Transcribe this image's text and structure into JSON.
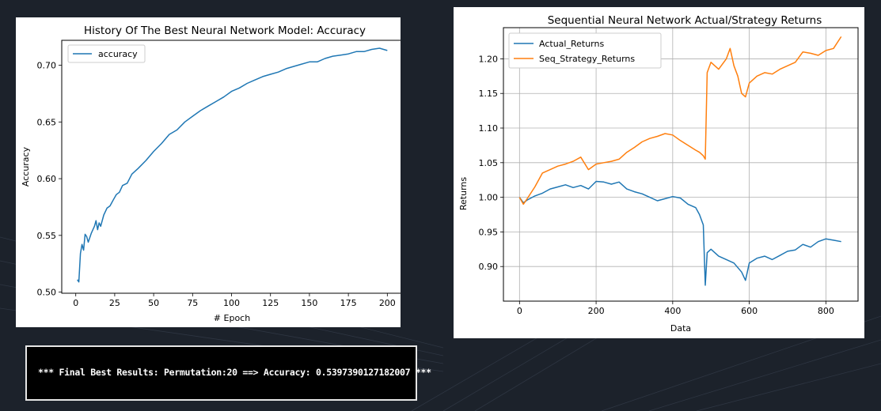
{
  "chart_data": [
    {
      "type": "line",
      "title": "History Of The Best Neural Network Model: Accuracy",
      "xlabel": "# Epoch",
      "ylabel": "Accuracy",
      "xlim": [
        -9,
        210
      ],
      "ylim": [
        0.499,
        0.722
      ],
      "xticks": [
        0,
        25,
        50,
        75,
        100,
        125,
        150,
        175,
        200
      ],
      "yticks": [
        0.5,
        0.55,
        0.6,
        0.65,
        0.7
      ],
      "xtick_labels": [
        "0",
        "25",
        "50",
        "75",
        "100",
        "125",
        "150",
        "175",
        "200"
      ],
      "ytick_labels": [
        "0.50",
        "0.55",
        "0.60",
        "0.65",
        "0.70"
      ],
      "grid": false,
      "legend": "upper left",
      "series": [
        {
          "name": "accuracy",
          "color": "#1f77b4",
          "x": [
            1,
            2,
            3,
            4,
            5,
            6,
            7,
            8,
            10,
            12,
            13,
            14,
            15,
            16,
            18,
            20,
            22,
            24,
            26,
            28,
            30,
            33,
            36,
            40,
            45,
            50,
            55,
            60,
            65,
            70,
            75,
            80,
            85,
            90,
            95,
            100,
            105,
            110,
            115,
            120,
            125,
            130,
            135,
            140,
            145,
            150,
            155,
            160,
            165,
            170,
            175,
            180,
            185,
            190,
            195,
            200
          ],
          "y": [
            0.511,
            0.509,
            0.534,
            0.542,
            0.537,
            0.551,
            0.549,
            0.544,
            0.552,
            0.558,
            0.563,
            0.555,
            0.561,
            0.558,
            0.568,
            0.574,
            0.576,
            0.581,
            0.586,
            0.588,
            0.594,
            0.596,
            0.604,
            0.609,
            0.616,
            0.624,
            0.631,
            0.639,
            0.643,
            0.65,
            0.655,
            0.66,
            0.664,
            0.668,
            0.672,
            0.677,
            0.68,
            0.684,
            0.687,
            0.69,
            0.692,
            0.694,
            0.697,
            0.699,
            0.701,
            0.703,
            0.703,
            0.706,
            0.708,
            0.709,
            0.71,
            0.712,
            0.712,
            0.714,
            0.715,
            0.713
          ]
        }
      ]
    },
    {
      "type": "line",
      "title": "Sequential Neural Network Actual/Strategy Returns",
      "xlabel": "Data",
      "ylabel": "Returns",
      "xlim": [
        -42,
        884
      ],
      "ylim": [
        0.85,
        1.245
      ],
      "xticks": [
        0,
        200,
        400,
        600,
        800
      ],
      "yticks": [
        0.9,
        0.95,
        1.0,
        1.05,
        1.1,
        1.15,
        1.2
      ],
      "xtick_labels": [
        "0",
        "200",
        "400",
        "600",
        "800"
      ],
      "ytick_labels": [
        "0.90",
        "0.95",
        "1.00",
        "1.05",
        "1.10",
        "1.15",
        "1.20"
      ],
      "grid": true,
      "legend": "upper left",
      "series": [
        {
          "name": "Actual_Returns",
          "color": "#1f77b4",
          "x": [
            0,
            10,
            20,
            40,
            60,
            80,
            100,
            120,
            140,
            160,
            180,
            200,
            220,
            240,
            260,
            280,
            300,
            320,
            340,
            360,
            380,
            400,
            420,
            440,
            460,
            470,
            480,
            485,
            490,
            500,
            520,
            540,
            560,
            580,
            590,
            600,
            620,
            640,
            660,
            680,
            700,
            720,
            740,
            760,
            780,
            800,
            820,
            840
          ],
          "y": [
            1.0,
            0.992,
            0.996,
            1.002,
            1.006,
            1.012,
            1.015,
            1.018,
            1.014,
            1.017,
            1.012,
            1.023,
            1.022,
            1.019,
            1.022,
            1.012,
            1.008,
            1.005,
            1.0,
            0.995,
            0.998,
            1.001,
            0.999,
            0.99,
            0.985,
            0.975,
            0.96,
            0.873,
            0.92,
            0.925,
            0.915,
            0.91,
            0.905,
            0.892,
            0.88,
            0.905,
            0.912,
            0.915,
            0.91,
            0.916,
            0.922,
            0.924,
            0.932,
            0.928,
            0.936,
            0.94,
            0.938,
            0.936
          ]
        },
        {
          "name": "Seq_Strategy_Returns",
          "color": "#ff7f0e",
          "x": [
            0,
            10,
            20,
            40,
            60,
            80,
            100,
            120,
            140,
            160,
            180,
            200,
            220,
            240,
            260,
            280,
            300,
            320,
            340,
            360,
            380,
            400,
            420,
            440,
            460,
            470,
            480,
            485,
            490,
            500,
            520,
            540,
            550,
            560,
            570,
            580,
            590,
            600,
            620,
            640,
            660,
            680,
            700,
            720,
            740,
            760,
            780,
            800,
            820,
            840
          ],
          "y": [
            1.0,
            0.99,
            0.998,
            1.015,
            1.035,
            1.04,
            1.045,
            1.048,
            1.052,
            1.058,
            1.04,
            1.048,
            1.05,
            1.052,
            1.055,
            1.065,
            1.072,
            1.08,
            1.085,
            1.088,
            1.092,
            1.09,
            1.082,
            1.075,
            1.068,
            1.065,
            1.06,
            1.055,
            1.18,
            1.195,
            1.185,
            1.2,
            1.215,
            1.19,
            1.175,
            1.15,
            1.145,
            1.165,
            1.175,
            1.18,
            1.178,
            1.185,
            1.19,
            1.195,
            1.21,
            1.208,
            1.205,
            1.212,
            1.215,
            1.232
          ]
        }
      ]
    }
  ],
  "result": {
    "text": "*** Final Best Results: Permutation:20 ==> Accuracy: 0.5397390127182007 ***"
  }
}
